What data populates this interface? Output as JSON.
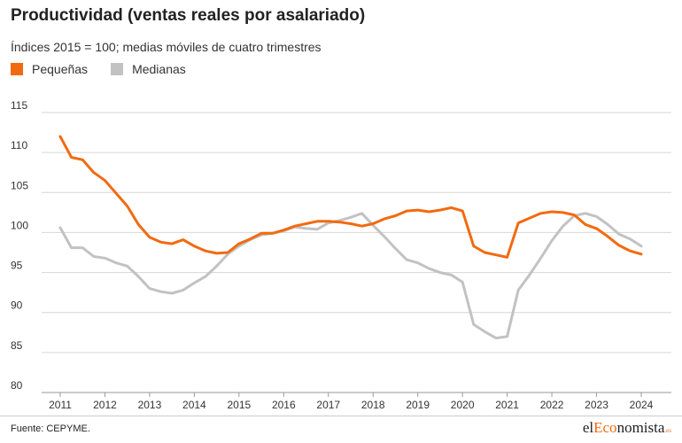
{
  "header": {
    "title": "Productividad (ventas reales por asalariado)",
    "subtitle": "Índices 2015 = 100; medias móviles de cuatro trimestres"
  },
  "legend": [
    {
      "label": "Pequeñas",
      "color": "#f26a10"
    },
    {
      "label": "Medianas",
      "color": "#c2c2c2"
    }
  ],
  "footer": {
    "source": "Fuente: CEPYME.",
    "logo_prefix": "el",
    "logo_accent": "Eco",
    "logo_suffix": "nomista",
    "logo_tld": ".es"
  },
  "chart_data": {
    "type": "line",
    "title": "Productividad (ventas reales por asalariado)",
    "subtitle": "Índices 2015 = 100; medias móviles de cuatro trimestres",
    "xlim": [
      2011,
      2024
    ],
    "ylim": [
      80,
      115
    ],
    "x_ticks": [
      2011,
      2012,
      2013,
      2014,
      2015,
      2016,
      2017,
      2018,
      2019,
      2020,
      2021,
      2022,
      2023,
      2024
    ],
    "y_ticks": [
      80,
      85,
      90,
      95,
      100,
      105,
      110,
      115
    ],
    "grid": true,
    "legend_position": "top-left",
    "series": [
      {
        "name": "Pequeñas",
        "color": "#f26a10",
        "x": [
          2011,
          2011.25,
          2011.5,
          2011.75,
          2012,
          2012.25,
          2012.5,
          2012.75,
          2013,
          2013.25,
          2013.5,
          2013.75,
          2014,
          2014.25,
          2014.5,
          2014.75,
          2015,
          2015.25,
          2015.5,
          2015.75,
          2016,
          2016.25,
          2016.5,
          2016.75,
          2017,
          2017.25,
          2017.5,
          2017.75,
          2018,
          2018.25,
          2018.5,
          2018.75,
          2019,
          2019.25,
          2019.5,
          2019.75,
          2020,
          2020.25,
          2020.5,
          2020.75,
          2021,
          2021.25,
          2021.5,
          2021.75,
          2022,
          2022.25,
          2022.5,
          2022.75,
          2023,
          2023.25,
          2023.5,
          2023.75,
          2024
        ],
        "values": [
          112.0,
          109.4,
          109.1,
          107.5,
          106.5,
          104.9,
          103.3,
          101.0,
          99.4,
          98.8,
          98.6,
          99.1,
          98.3,
          97.7,
          97.4,
          97.5,
          98.6,
          99.2,
          99.9,
          99.9,
          100.3,
          100.8,
          101.1,
          101.4,
          101.4,
          101.3,
          101.1,
          100.8,
          101.1,
          101.7,
          102.1,
          102.7,
          102.8,
          102.6,
          102.8,
          103.1,
          102.7,
          98.3,
          97.5,
          97.2,
          96.9,
          101.2,
          101.8,
          102.4,
          102.6,
          102.5,
          102.2,
          101.0,
          100.5,
          99.5,
          98.4,
          97.7,
          97.3
        ]
      },
      {
        "name": "Medianas",
        "color": "#c2c2c2",
        "x": [
          2011,
          2011.25,
          2011.5,
          2011.75,
          2012,
          2012.25,
          2012.5,
          2012.75,
          2013,
          2013.25,
          2013.5,
          2013.75,
          2014,
          2014.25,
          2014.5,
          2014.75,
          2015,
          2015.25,
          2015.5,
          2015.75,
          2016,
          2016.25,
          2016.5,
          2016.75,
          2017,
          2017.25,
          2017.5,
          2017.75,
          2018,
          2018.25,
          2018.5,
          2018.75,
          2019,
          2019.25,
          2019.5,
          2019.75,
          2020,
          2020.25,
          2020.5,
          2020.75,
          2021,
          2021.25,
          2021.5,
          2021.75,
          2022,
          2022.25,
          2022.5,
          2022.75,
          2023,
          2023.25,
          2023.5,
          2023.75,
          2024
        ],
        "values": [
          100.6,
          98.1,
          98.1,
          97.0,
          96.8,
          96.2,
          95.8,
          94.5,
          93.0,
          92.6,
          92.4,
          92.8,
          93.7,
          94.5,
          95.8,
          97.3,
          98.3,
          99.1,
          99.7,
          99.9,
          100.2,
          100.7,
          100.5,
          100.4,
          101.2,
          101.5,
          101.9,
          102.4,
          100.9,
          99.5,
          98.0,
          96.6,
          96.2,
          95.5,
          95.0,
          94.7,
          93.8,
          88.5,
          87.6,
          86.8,
          87.0,
          92.8,
          94.7,
          96.8,
          99.0,
          100.8,
          102.1,
          102.4,
          102.0,
          101.0,
          99.8,
          99.2,
          98.3
        ]
      }
    ]
  }
}
